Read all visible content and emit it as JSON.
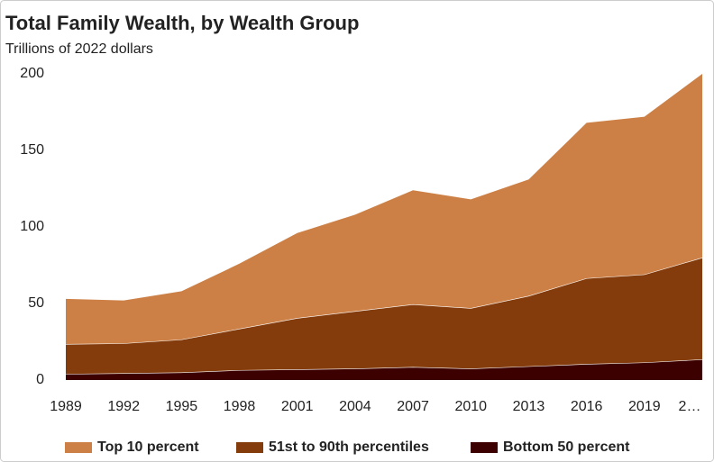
{
  "chart_data": {
    "type": "stacked_area",
    "title": "Total Family Wealth, by Wealth Group",
    "subtitle": "Trillions of 2022 dollars",
    "categories": [
      "1989",
      "1992",
      "1995",
      "1998",
      "2001",
      "2004",
      "2007",
      "2010",
      "2013",
      "2016",
      "2019",
      "2…"
    ],
    "series": [
      {
        "name": "Bottom 50 percent",
        "color": "#3d0000",
        "values": [
          4,
          4.5,
          5,
          6.5,
          7,
          7.5,
          8.5,
          7.5,
          9,
          10.5,
          11.5,
          13.5
        ]
      },
      {
        "name": "51st to 90th percentiles",
        "color": "#843c0c",
        "values": [
          19.5,
          19.5,
          21.5,
          27,
          33.5,
          37.5,
          41,
          39.5,
          46,
          56,
          57.5,
          66.5
        ]
      },
      {
        "name": "Top 10 percent",
        "color": "#cd8046",
        "values": [
          29.5,
          28,
          31.5,
          42.5,
          55.5,
          63,
          74.5,
          71,
          76,
          101.5,
          103,
          120
        ]
      }
    ],
    "ylim": [
      0,
      200
    ],
    "yticks": [
      0,
      50,
      100,
      150,
      200
    ],
    "grid": false
  }
}
